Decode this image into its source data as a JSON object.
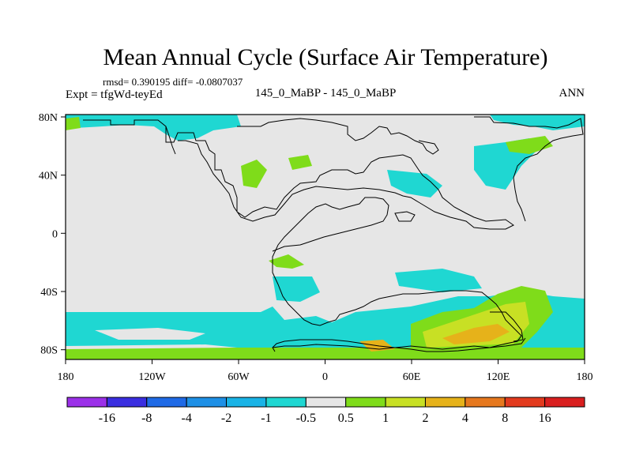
{
  "chart_data": {
    "type": "heatmap",
    "title": "Mean Annual Cycle (Surface Air Temperature)",
    "stats_line": "rmsd= 0.390195 diff= -0.0807037",
    "experiment_label": "Expt = tfgWd-teyEd",
    "comparison_label": "145_0_MaBP - 145_0_MaBP",
    "season_label": "ANN",
    "x_axis": {
      "range": [
        -180,
        180
      ],
      "ticks": [
        "180",
        "120W",
        "60W",
        "0",
        "60E",
        "120E",
        "180"
      ]
    },
    "y_axis": {
      "range": [
        -90,
        90
      ],
      "ticks": [
        "80N",
        "40N",
        "0",
        "40S",
        "80S"
      ]
    },
    "colorbar": {
      "labels": [
        "-16",
        "-8",
        "-4",
        "-2",
        "-1",
        "-0.5",
        "0.5",
        "1",
        "2",
        "4",
        "8",
        "16"
      ],
      "colors": [
        "#9b30e8",
        "#3a2ee0",
        "#1f6ae6",
        "#1e90e6",
        "#19b3e6",
        "#1fd7d2",
        "#e6e6e6",
        "#7fdc1a",
        "#c8e024",
        "#e6b21a",
        "#e6781e",
        "#e23a1e",
        "#d91f1f"
      ]
    },
    "background_color": "#e6e6e6",
    "anomaly_regions": [
      {
        "color": "#1fd7d2",
        "desc": "Arctic band 80-90N"
      },
      {
        "color": "#1fd7d2",
        "desc": "Antarctic circumpolar band 55-75S"
      },
      {
        "color": "#7fdc1a",
        "desc": "southern high latitudes 80-90S"
      },
      {
        "color": "#c8e024",
        "desc": "South Indian Ocean 60-80S"
      },
      {
        "color": "#e6b21a",
        "desc": "South Indian Ocean core 75-80S"
      }
    ]
  }
}
